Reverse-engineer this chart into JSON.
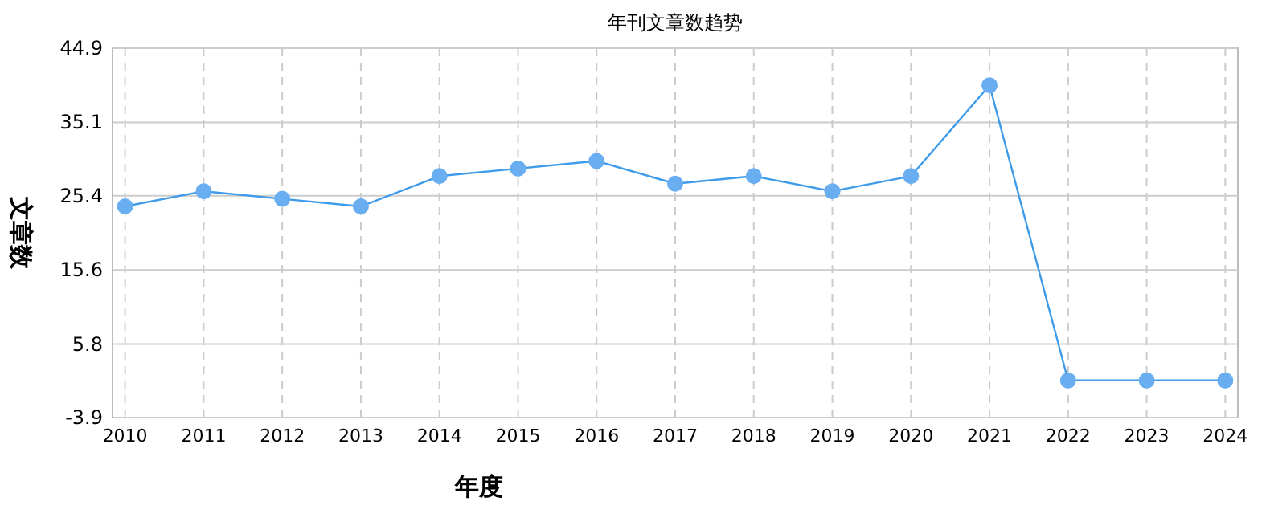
{
  "chart_data": {
    "type": "line",
    "title": "年刊文章数趋势",
    "xlabel": "年度",
    "ylabel": "文章数",
    "categories": [
      "2010",
      "2011",
      "2012",
      "2013",
      "2014",
      "2015",
      "2016",
      "2017",
      "2018",
      "2019",
      "2020",
      "2021",
      "2022",
      "2023",
      "2024"
    ],
    "series": [
      {
        "color": "#3d9be9",
        "values": [
          24,
          26,
          25,
          24,
          28,
          29,
          30,
          27,
          28,
          26,
          28,
          40,
          1,
          1,
          1
        ]
      }
    ],
    "ylim": [
      -3.9,
      44.9
    ],
    "yticks": [
      -3.9,
      5.8,
      15.6,
      25.4,
      35.1,
      44.9
    ],
    "grid": true,
    "marker": "circle",
    "line_style": "solid"
  }
}
